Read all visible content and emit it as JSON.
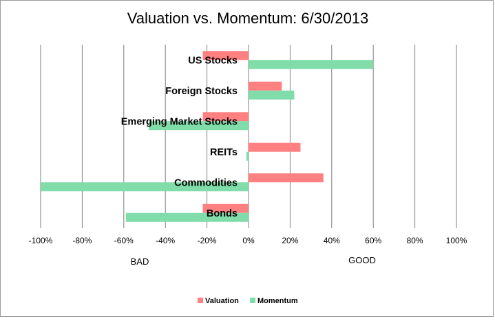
{
  "chart_data": {
    "type": "bar",
    "orientation": "horizontal",
    "title": "Valuation vs. Momentum: 6/30/2013",
    "categories": [
      "US Stocks",
      "Foreign Stocks",
      "Emerging Market Stocks",
      "REITs",
      "Commodities",
      "Bonds"
    ],
    "series": [
      {
        "name": "Valuation",
        "color": "#ff8080",
        "values": [
          -22,
          16,
          -22,
          25,
          36,
          -22
        ]
      },
      {
        "name": "Momentum",
        "color": "#80dca8",
        "values": [
          60,
          22,
          -48,
          -1,
          -100,
          -59
        ]
      }
    ],
    "xlim": [
      -100,
      100
    ],
    "x_ticks": [
      "-100%",
      "-80%",
      "-60%",
      "-40%",
      "-20%",
      "0%",
      "20%",
      "40%",
      "60%",
      "80%",
      "100%"
    ],
    "x_tick_values": [
      -100,
      -80,
      -60,
      -40,
      -20,
      0,
      20,
      40,
      60,
      80,
      100
    ],
    "left_label": "BAD",
    "right_label": "GOOD",
    "grid": "vertical",
    "legend_position": "bottom"
  }
}
